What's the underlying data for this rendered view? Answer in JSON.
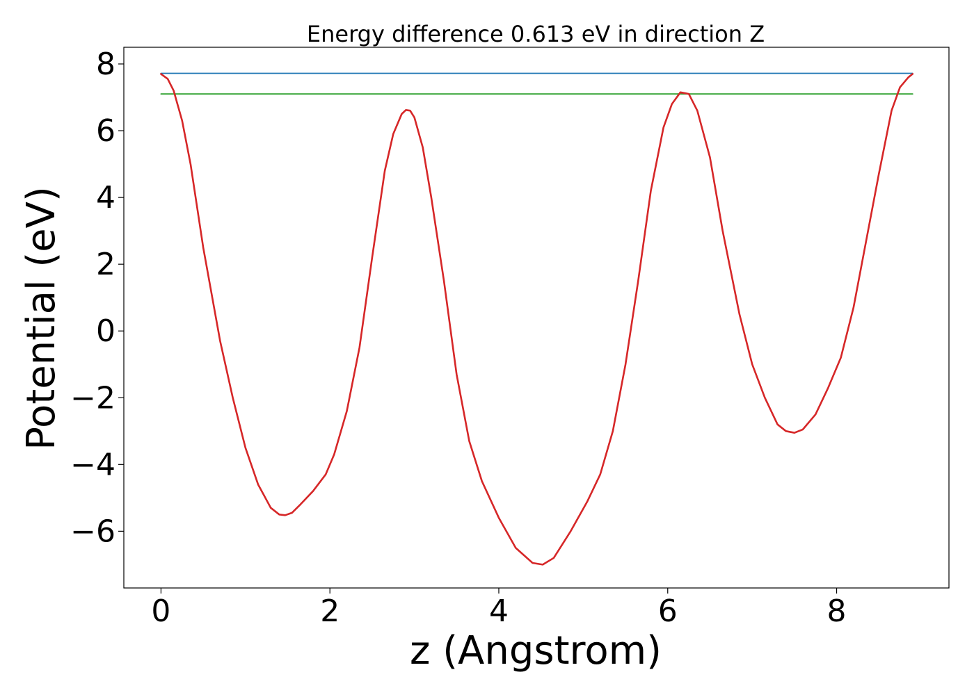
{
  "chart_data": {
    "type": "line",
    "title": "Energy difference 0.613 eV in direction Z",
    "xlabel": "z (Angstrom)",
    "ylabel": "Potential (eV)",
    "xlim": [
      -0.44,
      9.33
    ],
    "ylim": [
      -7.7,
      8.5
    ],
    "grid": false,
    "legend": "none",
    "x_ticks": [
      {
        "value": 0,
        "label": "0"
      },
      {
        "value": 2,
        "label": "2"
      },
      {
        "value": 4,
        "label": "4"
      },
      {
        "value": 6,
        "label": "6"
      },
      {
        "value": 8,
        "label": "8"
      }
    ],
    "y_ticks": [
      {
        "value": -6,
        "label": "−6"
      },
      {
        "value": -4,
        "label": "−4"
      },
      {
        "value": -2,
        "label": "−2"
      },
      {
        "value": 0,
        "label": "0"
      },
      {
        "value": 2,
        "label": "2"
      },
      {
        "value": 4,
        "label": "4"
      },
      {
        "value": 6,
        "label": "6"
      },
      {
        "value": 8,
        "label": "8"
      }
    ],
    "series": [
      {
        "color": "#1f77b4",
        "x": [
          0,
          8.9
        ],
        "y": [
          7.72,
          7.72
        ]
      },
      {
        "color": "#2ca02c",
        "x": [
          0,
          8.9
        ],
        "y": [
          7.1,
          7.1
        ]
      },
      {
        "color": "#d62728",
        "x": [
          0,
          0.08,
          0.15,
          0.25,
          0.35,
          0.5,
          0.7,
          0.85,
          1.0,
          1.15,
          1.3,
          1.4,
          1.47,
          1.55,
          1.65,
          1.8,
          1.95,
          2.05,
          2.2,
          2.35,
          2.5,
          2.65,
          2.75,
          2.85,
          2.9,
          2.95,
          3.0,
          3.1,
          3.2,
          3.35,
          3.5,
          3.65,
          3.8,
          4.0,
          4.2,
          4.4,
          4.52,
          4.65,
          4.85,
          5.05,
          5.2,
          5.35,
          5.5,
          5.65,
          5.8,
          5.95,
          6.05,
          6.15,
          6.25,
          6.35,
          6.5,
          6.65,
          6.85,
          7.0,
          7.15,
          7.3,
          7.4,
          7.5,
          7.6,
          7.75,
          7.9,
          8.05,
          8.2,
          8.35,
          8.5,
          8.65,
          8.75,
          8.85,
          8.9
        ],
        "y": [
          7.7,
          7.55,
          7.2,
          6.3,
          5.0,
          2.5,
          -0.3,
          -2.0,
          -3.5,
          -4.6,
          -5.3,
          -5.5,
          -5.52,
          -5.45,
          -5.2,
          -4.8,
          -4.3,
          -3.7,
          -2.4,
          -0.5,
          2.2,
          4.8,
          5.9,
          6.5,
          6.62,
          6.6,
          6.4,
          5.5,
          4.0,
          1.5,
          -1.3,
          -3.3,
          -4.5,
          -5.6,
          -6.5,
          -6.95,
          -7.0,
          -6.8,
          -6.0,
          -5.1,
          -4.3,
          -3.0,
          -1.0,
          1.5,
          4.2,
          6.1,
          6.8,
          7.15,
          7.1,
          6.6,
          5.2,
          3.0,
          0.5,
          -1.0,
          -2.0,
          -2.8,
          -3.0,
          -3.05,
          -2.95,
          -2.5,
          -1.7,
          -0.8,
          0.7,
          2.7,
          4.7,
          6.6,
          7.3,
          7.6,
          7.7
        ]
      }
    ]
  }
}
